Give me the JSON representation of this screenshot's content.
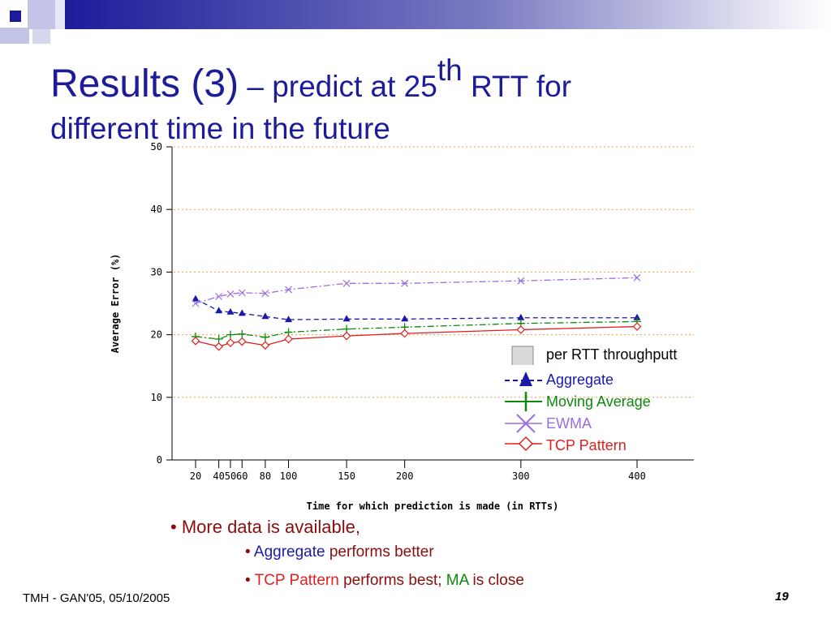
{
  "slide": {
    "title_main": "Results (3)",
    "title_dash": " – predict at 25",
    "title_sup": "th",
    "title_rest": " RTT for",
    "title_line2": "different time in the future",
    "colors": {
      "title": "#1c1c9a",
      "band_start": "#1c1c9a",
      "band_end": "#ffffff",
      "bullet": "#8b0d0d"
    }
  },
  "legend": {
    "items": [
      {
        "label": "per RTT throughputt",
        "color": "#000000",
        "marker": "gray-square"
      },
      {
        "label": "Aggregate",
        "color": "#1a1aa8",
        "marker": "triangle-dashed"
      },
      {
        "label": "Moving Average",
        "color": "#0b8a0b",
        "marker": "plus"
      },
      {
        "label": "EWMA",
        "color": "#9a6ee0",
        "marker": "x"
      },
      {
        "label": "TCP Pattern",
        "color": "#e02020",
        "marker": "diamond"
      }
    ]
  },
  "bullets": {
    "b1": "More data is available,",
    "b2_part1": "Aggregate",
    "b2_part2": " performs better",
    "b3_part1": "TCP Pattern",
    "b3_part2": " performs best; ",
    "b3_part3": "MA",
    "b3_part4": " is close",
    "colors": {
      "aggregate": "#1a1aa8",
      "tcp": "#e02020",
      "ma": "#0b8a0b"
    }
  },
  "footer": {
    "left": "TMH - GAN'05, 05/10/2005",
    "page": "19"
  },
  "chart_data": {
    "type": "line",
    "xlabel": "Time for which prediction is made (in RTTs)",
    "ylabel": "Average Error (%)",
    "x": [
      20,
      40,
      50,
      60,
      80,
      100,
      150,
      200,
      300,
      400
    ],
    "x_ticks": [
      "20",
      "40",
      "50",
      "60",
      "80",
      "100",
      "150",
      "200",
      "300",
      "400"
    ],
    "y_ticks": [
      0,
      10,
      20,
      30,
      40,
      50
    ],
    "ylim": [
      0,
      50
    ],
    "grid": "horizontal-dotted",
    "series": [
      {
        "name": "Aggregate",
        "color": "#1a1aa8",
        "style": "dashed",
        "marker": "triangle",
        "values": [
          25.7,
          23.8,
          23.6,
          23.4,
          22.9,
          22.4,
          22.5,
          22.5,
          22.7,
          22.7
        ]
      },
      {
        "name": "Moving Average",
        "color": "#0b8a0b",
        "style": "dashdot",
        "marker": "plus",
        "values": [
          19.7,
          19.3,
          20.0,
          20.1,
          19.6,
          20.4,
          20.9,
          21.2,
          21.8,
          22.1
        ]
      },
      {
        "name": "EWMA",
        "color": "#9a6ee0",
        "style": "dashdot",
        "marker": "x",
        "values": [
          25.0,
          26.1,
          26.5,
          26.7,
          26.6,
          27.2,
          28.2,
          28.2,
          28.6,
          29.1
        ]
      },
      {
        "name": "TCP Pattern",
        "color": "#e02020",
        "style": "solid",
        "marker": "diamond",
        "values": [
          19.0,
          18.1,
          18.7,
          18.9,
          18.3,
          19.3,
          19.8,
          20.2,
          20.8,
          21.3
        ]
      }
    ]
  }
}
